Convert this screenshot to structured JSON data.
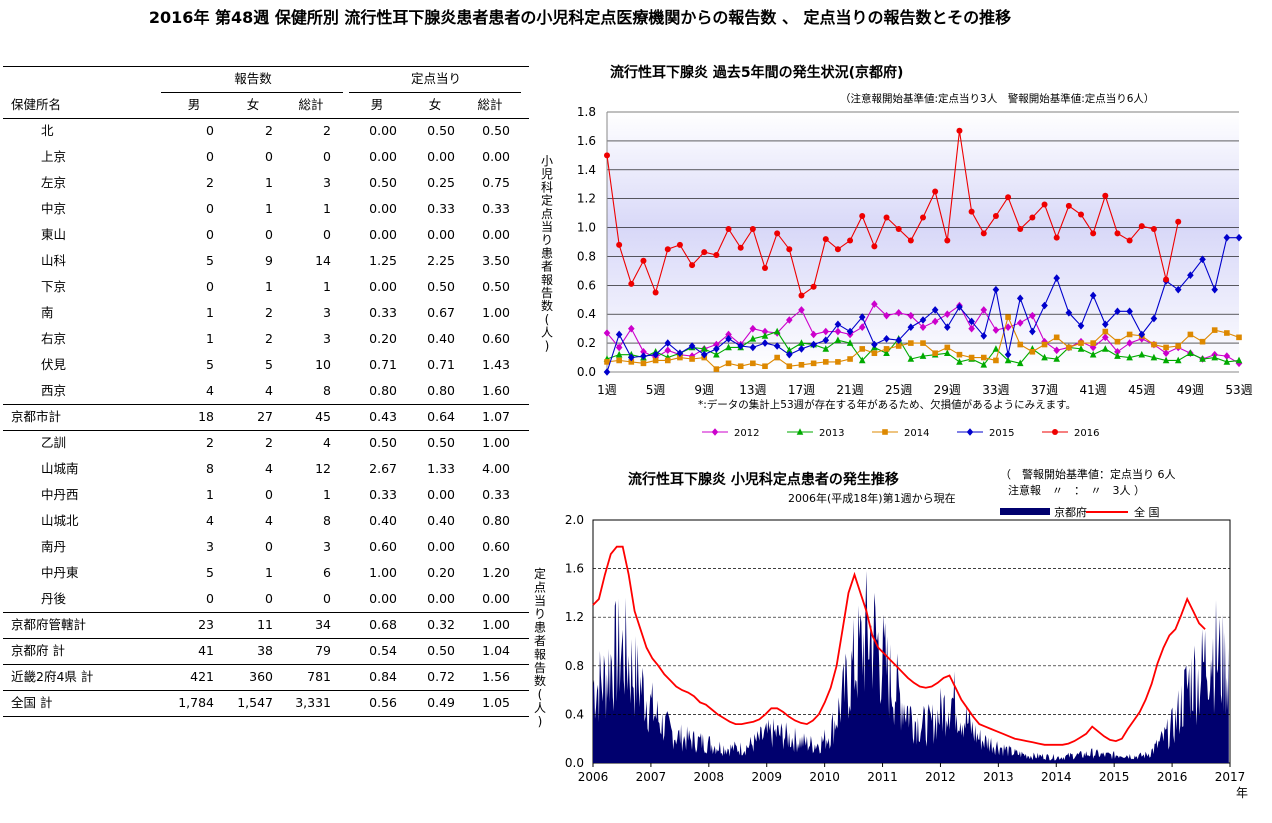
{
  "page_title": "2016年 第48週 保健所別 流行性耳下腺炎患者患者の小児科定点医療機関からの報告数 、 定点当りの報告数とその推移",
  "table": {
    "group_headers": [
      "報告数",
      "定点当り"
    ],
    "col_headers": [
      "保健所名",
      "男",
      "女",
      "総計",
      "男",
      "女",
      "総計"
    ],
    "rows": [
      {
        "name": "北",
        "r_m": "0",
        "r_f": "2",
        "r_t": "2",
        "p_m": "0.00",
        "p_f": "0.50",
        "p_t": "0.50",
        "sub": true
      },
      {
        "name": "上京",
        "r_m": "0",
        "r_f": "0",
        "r_t": "0",
        "p_m": "0.00",
        "p_f": "0.00",
        "p_t": "0.00",
        "sub": true
      },
      {
        "name": "左京",
        "r_m": "2",
        "r_f": "1",
        "r_t": "3",
        "p_m": "0.50",
        "p_f": "0.25",
        "p_t": "0.75",
        "sub": true
      },
      {
        "name": "中京",
        "r_m": "0",
        "r_f": "1",
        "r_t": "1",
        "p_m": "0.00",
        "p_f": "0.33",
        "p_t": "0.33",
        "sub": true
      },
      {
        "name": "東山",
        "r_m": "0",
        "r_f": "0",
        "r_t": "0",
        "p_m": "0.00",
        "p_f": "0.00",
        "p_t": "0.00",
        "sub": true
      },
      {
        "name": "山科",
        "r_m": "5",
        "r_f": "9",
        "r_t": "14",
        "p_m": "1.25",
        "p_f": "2.25",
        "p_t": "3.50",
        "sub": true
      },
      {
        "name": "下京",
        "r_m": "0",
        "r_f": "1",
        "r_t": "1",
        "p_m": "0.00",
        "p_f": "0.50",
        "p_t": "0.50",
        "sub": true
      },
      {
        "name": "南",
        "r_m": "1",
        "r_f": "2",
        "r_t": "3",
        "p_m": "0.33",
        "p_f": "0.67",
        "p_t": "1.00",
        "sub": true
      },
      {
        "name": "右京",
        "r_m": "1",
        "r_f": "2",
        "r_t": "3",
        "p_m": "0.20",
        "p_f": "0.40",
        "p_t": "0.60",
        "sub": true
      },
      {
        "name": "伏見",
        "r_m": "5",
        "r_f": "5",
        "r_t": "10",
        "p_m": "0.71",
        "p_f": "0.71",
        "p_t": "1.43",
        "sub": true
      },
      {
        "name": "西京",
        "r_m": "4",
        "r_f": "4",
        "r_t": "8",
        "p_m": "0.80",
        "p_f": "0.80",
        "p_t": "1.60",
        "sub": true
      },
      {
        "name": "京都市計",
        "r_m": "18",
        "r_f": "27",
        "r_t": "45",
        "p_m": "0.43",
        "p_f": "0.64",
        "p_t": "1.07",
        "sub": false
      },
      {
        "name": "乙訓",
        "r_m": "2",
        "r_f": "2",
        "r_t": "4",
        "p_m": "0.50",
        "p_f": "0.50",
        "p_t": "1.00",
        "sub": true
      },
      {
        "name": "山城南",
        "r_m": "8",
        "r_f": "4",
        "r_t": "12",
        "p_m": "2.67",
        "p_f": "1.33",
        "p_t": "4.00",
        "sub": true
      },
      {
        "name": "中丹西",
        "r_m": "1",
        "r_f": "0",
        "r_t": "1",
        "p_m": "0.33",
        "p_f": "0.00",
        "p_t": "0.33",
        "sub": true
      },
      {
        "name": "山城北",
        "r_m": "4",
        "r_f": "4",
        "r_t": "8",
        "p_m": "0.40",
        "p_f": "0.40",
        "p_t": "0.80",
        "sub": true
      },
      {
        "name": "南丹",
        "r_m": "3",
        "r_f": "0",
        "r_t": "3",
        "p_m": "0.60",
        "p_f": "0.00",
        "p_t": "0.60",
        "sub": true
      },
      {
        "name": "中丹東",
        "r_m": "5",
        "r_f": "1",
        "r_t": "6",
        "p_m": "1.00",
        "p_f": "0.20",
        "p_t": "1.20",
        "sub": true
      },
      {
        "name": "丹後",
        "r_m": "0",
        "r_f": "0",
        "r_t": "0",
        "p_m": "0.00",
        "p_f": "0.00",
        "p_t": "0.00",
        "sub": true
      },
      {
        "name": "京都府管轄計",
        "r_m": "23",
        "r_f": "11",
        "r_t": "34",
        "p_m": "0.68",
        "p_f": "0.32",
        "p_t": "1.00",
        "sub": false
      },
      {
        "name": "京都府 計",
        "r_m": "41",
        "r_f": "38",
        "r_t": "79",
        "p_m": "0.54",
        "p_f": "0.50",
        "p_t": "1.04",
        "sub": false
      },
      {
        "name": "近畿2府4県 計",
        "r_m": "421",
        "r_f": "360",
        "r_t": "781",
        "p_m": "0.84",
        "p_f": "0.72",
        "p_t": "1.56",
        "sub": false
      },
      {
        "name": "全国 計",
        "r_m": "1,784",
        "r_f": "1,547",
        "r_t": "3,331",
        "p_m": "0.56",
        "p_f": "0.49",
        "p_t": "1.05",
        "sub": false
      }
    ]
  },
  "chart_data": [
    {
      "type": "line",
      "title": "流行性耳下腺炎 過去5年間の発生状況(京都府)",
      "subtitle": "（注意報開始基準値:定点当り3人　警報開始基準値:定点当り6人）",
      "ylabel": "小児科定点当り患者報告数(人)",
      "note": "*:データの集計上53週が存在する年があるため、欠損値があるようにみえます。",
      "ylim": [
        0,
        1.8
      ],
      "yticks": [
        "0.0",
        "0.2",
        "0.4",
        "0.6",
        "0.8",
        "1.0",
        "1.2",
        "1.4",
        "1.6",
        "1.8"
      ],
      "xtick_labels": [
        "1週",
        "5週",
        "9週",
        "13週",
        "17週",
        "21週",
        "25週",
        "29週",
        "33週",
        "37週",
        "41週",
        "45週",
        "49週",
        "53週"
      ],
      "grid": true,
      "legend": "bottom",
      "series": [
        {
          "name": "2012",
          "color": "#cc00cc",
          "marker": "diamond",
          "values": [
            0.27,
            0.17,
            0.3,
            0.14,
            0.1,
            0.15,
            0.12,
            0.11,
            0.16,
            0.19,
            0.26,
            0.19,
            0.3,
            0.28,
            0.27,
            0.36,
            0.43,
            0.26,
            0.28,
            0.28,
            0.26,
            0.31,
            0.47,
            0.39,
            0.41,
            0.39,
            0.31,
            0.35,
            0.4,
            0.46,
            0.3,
            0.43,
            0.29,
            0.31,
            0.34,
            0.39,
            0.21,
            0.15,
            0.17,
            0.21,
            0.17,
            0.24,
            0.14,
            0.2,
            0.23,
            0.19,
            0.13,
            0.17,
            0.13,
            0.09,
            0.12,
            0.11,
            0.06
          ]
        },
        {
          "name": "2013",
          "color": "#00aa00",
          "marker": "triangle",
          "values": [
            0.09,
            0.12,
            0.12,
            0.1,
            0.14,
            0.1,
            0.13,
            0.17,
            0.16,
            0.12,
            0.17,
            0.17,
            0.23,
            0.25,
            0.28,
            0.15,
            0.2,
            0.19,
            0.16,
            0.22,
            0.2,
            0.08,
            0.17,
            0.13,
            0.23,
            0.09,
            0.11,
            0.12,
            0.13,
            0.07,
            0.09,
            0.05,
            0.16,
            0.08,
            0.06,
            0.16,
            0.1,
            0.09,
            0.17,
            0.16,
            0.12,
            0.16,
            0.11,
            0.1,
            0.12,
            0.1,
            0.08,
            0.08,
            0.13,
            0.09,
            0.1,
            0.07,
            0.08
          ]
        },
        {
          "name": "2014",
          "color": "#dd8800",
          "marker": "square",
          "values": [
            0.07,
            0.08,
            0.07,
            0.06,
            0.08,
            0.08,
            0.1,
            0.09,
            0.1,
            0.02,
            0.06,
            0.04,
            0.06,
            0.04,
            0.1,
            0.04,
            0.05,
            0.06,
            0.07,
            0.07,
            0.09,
            0.16,
            0.13,
            0.16,
            0.18,
            0.2,
            0.2,
            0.13,
            0.17,
            0.12,
            0.1,
            0.1,
            0.08,
            0.38,
            0.19,
            0.14,
            0.19,
            0.24,
            0.17,
            0.2,
            0.2,
            0.28,
            0.21,
            0.26,
            0.25,
            0.19,
            0.17,
            0.18,
            0.26,
            0.21,
            0.29,
            0.27,
            0.24
          ]
        },
        {
          "name": "2015",
          "color": "#0000cc",
          "marker": "diamond",
          "values": [
            0.0,
            0.26,
            0.1,
            0.11,
            0.12,
            0.2,
            0.13,
            0.18,
            0.12,
            0.16,
            0.23,
            0.18,
            0.17,
            0.2,
            0.18,
            0.12,
            0.16,
            0.19,
            0.22,
            0.33,
            0.28,
            0.38,
            0.19,
            0.23,
            0.22,
            0.31,
            0.36,
            0.43,
            0.31,
            0.45,
            0.35,
            0.25,
            0.57,
            0.12,
            0.51,
            0.28,
            0.46,
            0.65,
            0.41,
            0.32,
            0.53,
            0.33,
            0.42,
            0.42,
            0.26,
            0.37,
            0.63,
            0.57,
            0.67,
            0.78,
            0.57,
            0.93,
            0.93
          ]
        },
        {
          "name": "2016",
          "color": "#ee0000",
          "marker": "circle",
          "values": [
            1.5,
            0.88,
            0.61,
            0.77,
            0.55,
            0.85,
            0.88,
            0.74,
            0.83,
            0.81,
            0.99,
            0.86,
            0.99,
            0.72,
            0.96,
            0.85,
            0.53,
            0.59,
            0.92,
            0.85,
            0.91,
            1.08,
            0.87,
            1.07,
            0.99,
            0.91,
            1.07,
            1.25,
            0.91,
            1.67,
            1.11,
            0.96,
            1.08,
            1.21,
            0.99,
            1.07,
            1.16,
            0.93,
            1.15,
            1.09,
            0.96,
            1.22,
            0.96,
            0.91,
            1.01,
            0.99,
            0.64,
            1.04
          ]
        }
      ]
    },
    {
      "type": "area",
      "title": "流行性耳下腺炎 小児科定点患者の発生推移",
      "subtitle": "2006年(平成18年)第1週から現在",
      "threshold_note_1": "（　警報開始基準値：定点当り 6人",
      "threshold_note_2": "注意報　〃　：　〃　3人 ）",
      "ylabel": "定点当り患者報告数(人)",
      "ylim": [
        0,
        2.0
      ],
      "yticks": [
        "0.0",
        "0.4",
        "0.8",
        "1.2",
        "1.6",
        "2.0"
      ],
      "xtick_labels": [
        "2006",
        "2007",
        "2008",
        "2009",
        "2010",
        "2011",
        "2012",
        "2013",
        "2014",
        "2015",
        "2016",
        "2017"
      ],
      "x_unit": "年",
      "grid": true,
      "legend": "top-right",
      "series": [
        {
          "name": "京都府",
          "color": "#00006e",
          "kind": "area",
          "values": [
            0.8,
            0.8,
            0.85,
            1.05,
            1.1,
            1.15,
            1.05,
            0.9,
            0.8,
            0.68,
            0.55,
            0.45,
            0.38,
            0.32,
            0.28,
            0.26,
            0.24,
            0.23,
            0.22,
            0.21,
            0.19,
            0.17,
            0.16,
            0.15,
            0.15,
            0.15,
            0.17,
            0.2,
            0.24,
            0.28,
            0.3,
            0.3,
            0.28,
            0.26,
            0.24,
            0.22,
            0.2,
            0.19,
            0.2,
            0.24,
            0.32,
            0.48,
            0.65,
            0.85,
            1.0,
            1.15,
            1.3,
            1.32,
            1.2,
            1.0,
            0.85,
            0.75,
            0.65,
            0.55,
            0.45,
            0.4,
            0.38,
            0.4,
            0.48,
            0.55,
            0.68,
            0.62,
            0.5,
            0.42,
            0.32,
            0.25,
            0.22,
            0.2,
            0.18,
            0.15,
            0.12,
            0.1,
            0.09,
            0.08,
            0.07,
            0.07,
            0.07,
            0.06,
            0.06,
            0.06,
            0.07,
            0.08,
            0.08,
            0.09,
            0.1,
            0.09,
            0.08,
            0.08,
            0.08,
            0.09,
            0.08,
            0.07,
            0.07,
            0.08,
            0.12,
            0.18,
            0.25,
            0.32,
            0.42,
            0.6,
            0.78,
            0.9,
            0.85,
            1.05,
            1.2,
            1.1,
            1.0,
            0.95
          ]
        },
        {
          "name": "全 国",
          "color": "#ff0000",
          "kind": "line",
          "values": [
            1.3,
            1.35,
            1.55,
            1.72,
            1.78,
            1.78,
            1.55,
            1.25,
            1.1,
            0.95,
            0.86,
            0.8,
            0.73,
            0.68,
            0.63,
            0.6,
            0.58,
            0.55,
            0.5,
            0.48,
            0.44,
            0.4,
            0.37,
            0.34,
            0.32,
            0.32,
            0.33,
            0.34,
            0.36,
            0.4,
            0.45,
            0.45,
            0.42,
            0.38,
            0.35,
            0.33,
            0.32,
            0.35,
            0.4,
            0.5,
            0.62,
            0.8,
            1.1,
            1.4,
            1.55,
            1.4,
            1.25,
            1.05,
            0.95,
            0.9,
            0.85,
            0.8,
            0.75,
            0.7,
            0.66,
            0.63,
            0.62,
            0.63,
            0.66,
            0.7,
            0.72,
            0.62,
            0.52,
            0.45,
            0.38,
            0.32,
            0.3,
            0.28,
            0.26,
            0.24,
            0.22,
            0.2,
            0.19,
            0.18,
            0.17,
            0.16,
            0.15,
            0.15,
            0.15,
            0.15,
            0.16,
            0.18,
            0.21,
            0.24,
            0.3,
            0.26,
            0.22,
            0.19,
            0.18,
            0.2,
            0.28,
            0.35,
            0.42,
            0.52,
            0.65,
            0.82,
            0.95,
            1.05,
            1.1,
            1.22,
            1.35,
            1.25,
            1.15,
            1.1
          ]
        }
      ]
    }
  ]
}
